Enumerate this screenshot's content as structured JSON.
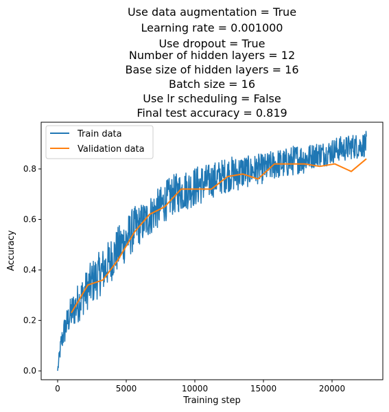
{
  "chart_data": {
    "type": "line",
    "title_lines": [
      "Use data augmentation = True",
      "Learning rate = 0.001000",
      "Use dropout = True",
      "Number of hidden layers = 12",
      "Base size of hidden layers = 16",
      "Batch size = 16",
      "Use lr scheduling = False",
      "Final test accuracy = 0.819"
    ],
    "xlabel": "Training step",
    "ylabel": "Accuracy",
    "xlim": [
      -1200,
      23700
    ],
    "ylim": [
      -0.035,
      0.985
    ],
    "xticks": [
      0,
      5000,
      10000,
      15000,
      20000
    ],
    "yticks": [
      0.0,
      0.2,
      0.4,
      0.6,
      0.8
    ],
    "x_tick_labels": [
      "0",
      "5000",
      "10000",
      "15000",
      "20000"
    ],
    "y_tick_labels": [
      "0.0",
      "0.2",
      "0.4",
      "0.6",
      "0.8"
    ],
    "legend_position": "upper-left",
    "grid": false,
    "series": [
      {
        "name": "Train data",
        "color": "#1f77b4",
        "x": [
          0,
          250,
          500,
          750,
          1000,
          1500,
          2000,
          2500,
          3000,
          3500,
          4000,
          4500,
          5000,
          5500,
          6000,
          6500,
          7000,
          7500,
          8000,
          8500,
          9000,
          9500,
          10000,
          10500,
          11000,
          11500,
          12000,
          12500,
          13000,
          13500,
          14000,
          14500,
          15000,
          15500,
          16000,
          16500,
          17000,
          17500,
          18000,
          18500,
          19000,
          19500,
          20000,
          20500,
          21000,
          21500,
          22000,
          22500
        ],
        "values": [
          0.0,
          0.11,
          0.16,
          0.2,
          0.23,
          0.27,
          0.31,
          0.35,
          0.38,
          0.41,
          0.45,
          0.49,
          0.52,
          0.56,
          0.58,
          0.6,
          0.63,
          0.65,
          0.68,
          0.7,
          0.71,
          0.72,
          0.73,
          0.74,
          0.75,
          0.76,
          0.77,
          0.78,
          0.78,
          0.79,
          0.79,
          0.8,
          0.8,
          0.81,
          0.82,
          0.82,
          0.83,
          0.84,
          0.84,
          0.85,
          0.86,
          0.86,
          0.87,
          0.88,
          0.88,
          0.89,
          0.89,
          0.9
        ],
        "noise_amplitude": [
          0.02,
          0.04,
          0.06,
          0.06,
          0.07,
          0.08,
          0.08,
          0.09,
          0.09,
          0.09,
          0.09,
          0.09,
          0.09,
          0.09,
          0.08,
          0.08,
          0.08,
          0.08,
          0.08,
          0.08,
          0.08,
          0.08,
          0.08,
          0.08,
          0.07,
          0.07,
          0.07,
          0.07,
          0.07,
          0.07,
          0.06,
          0.06,
          0.06,
          0.06,
          0.06,
          0.06,
          0.06,
          0.06,
          0.06,
          0.05,
          0.05,
          0.05,
          0.05,
          0.05,
          0.05,
          0.05,
          0.05,
          0.05
        ]
      },
      {
        "name": "Validation data",
        "color": "#ff7f0e",
        "x": [
          1000,
          2200,
          3300,
          4400,
          5600,
          6700,
          7800,
          9000,
          10100,
          11200,
          12400,
          13500,
          14600,
          15800,
          16900,
          18000,
          19100,
          20200,
          21400,
          22500
        ],
        "values": [
          0.23,
          0.34,
          0.36,
          0.44,
          0.55,
          0.62,
          0.65,
          0.72,
          0.72,
          0.72,
          0.77,
          0.78,
          0.76,
          0.82,
          0.82,
          0.82,
          0.81,
          0.82,
          0.79,
          0.84
        ]
      }
    ]
  }
}
